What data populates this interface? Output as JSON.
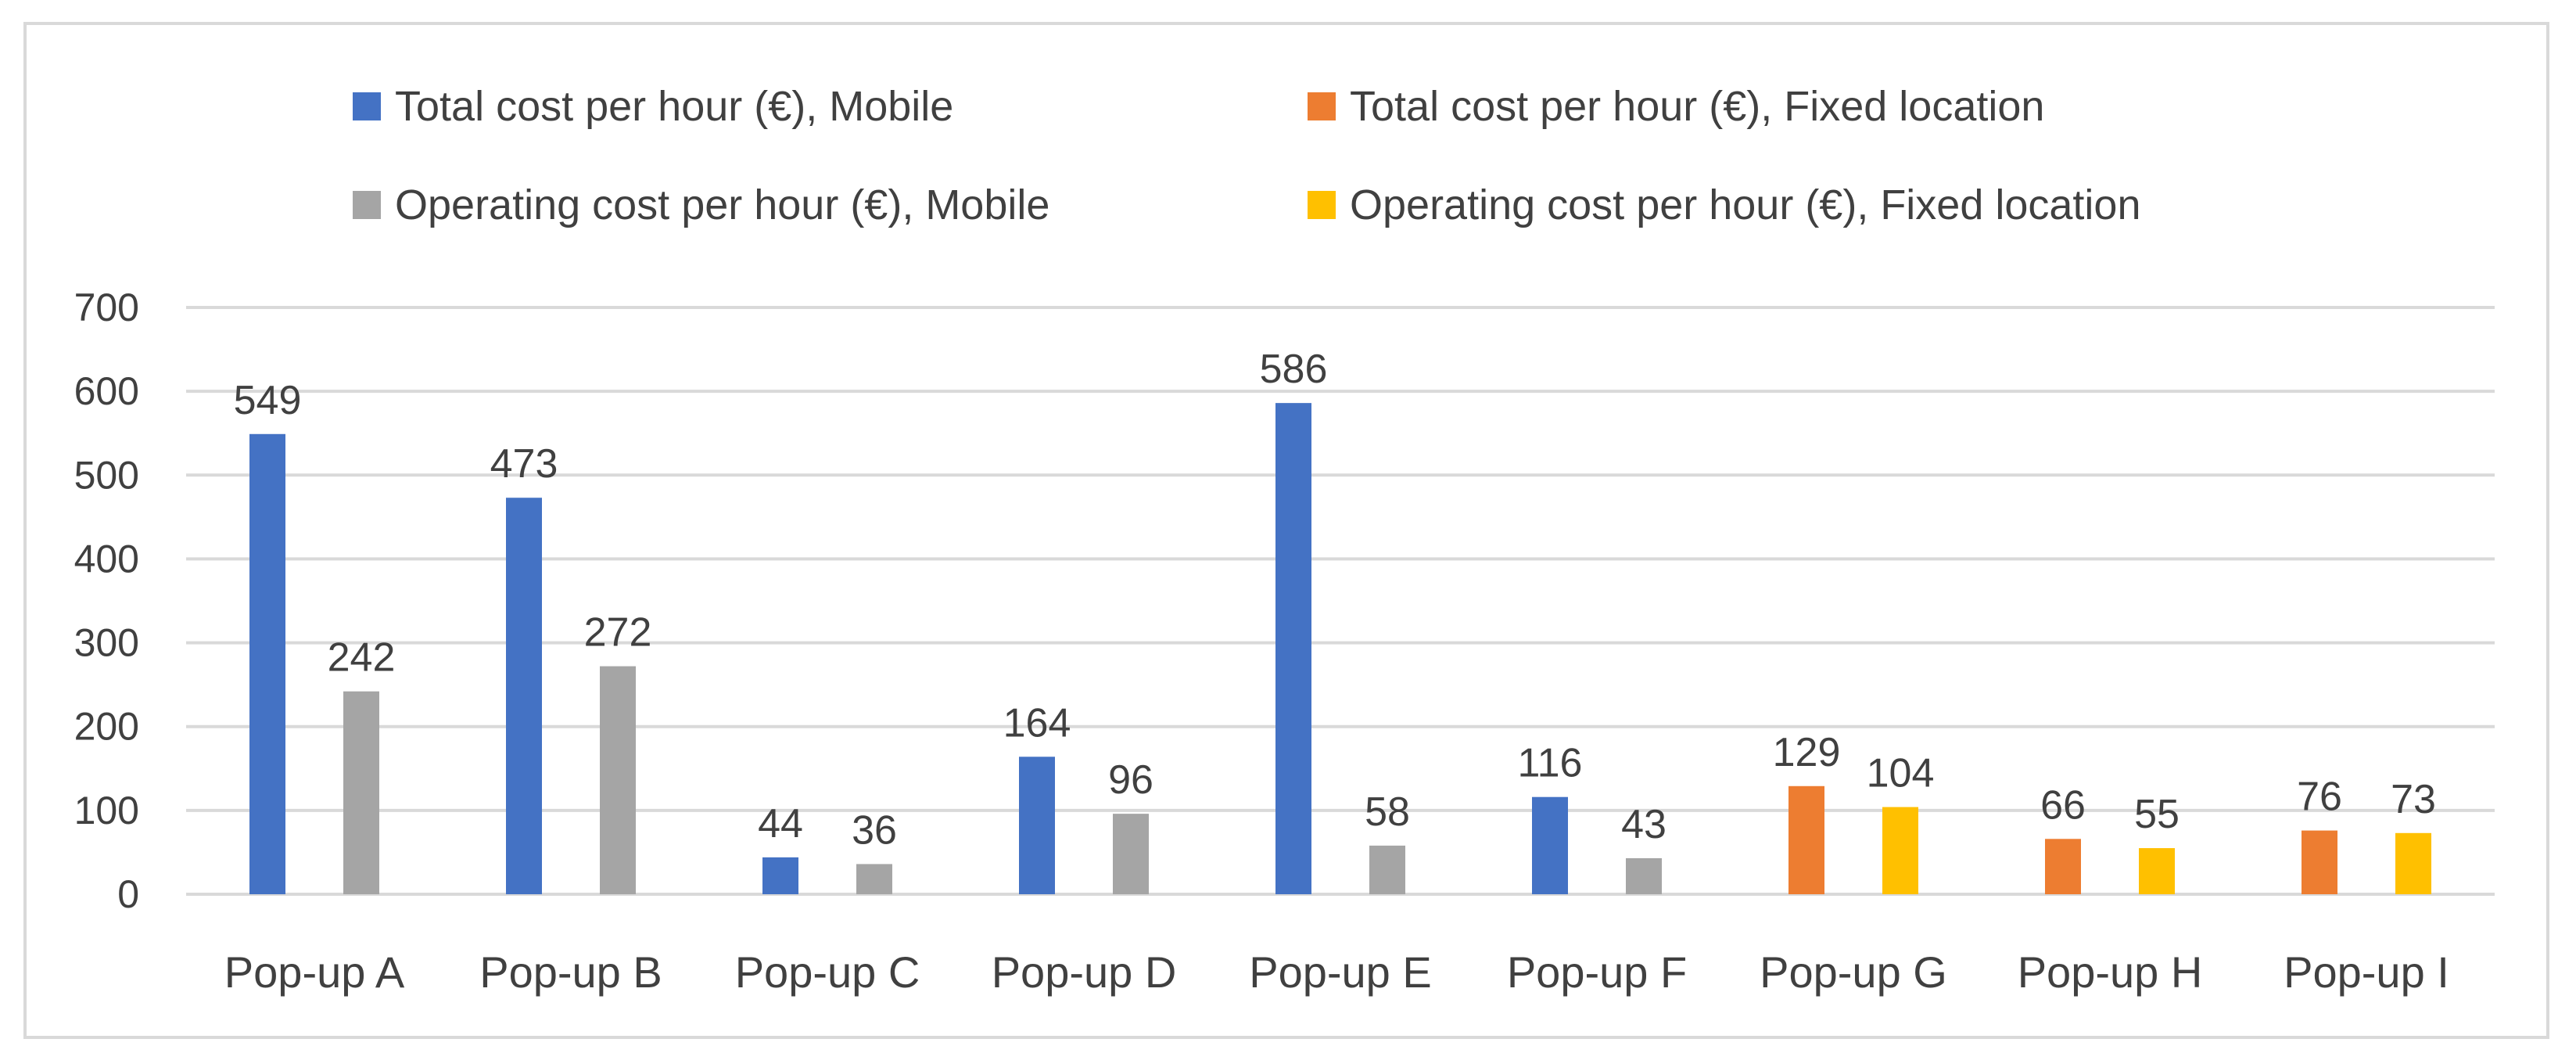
{
  "chart_data": {
    "type": "bar",
    "title": "",
    "xlabel": "",
    "ylabel": "",
    "ylim": [
      0,
      700
    ],
    "yticks": [
      0,
      100,
      200,
      300,
      400,
      500,
      600,
      700
    ],
    "grid": true,
    "legend_position": "top",
    "categories": [
      "Pop-up A",
      "Pop-up B",
      "Pop-up C",
      "Pop-up D",
      "Pop-up E",
      "Pop-up F",
      "Pop-up G",
      "Pop-up H",
      "Pop-up I"
    ],
    "series": [
      {
        "name": "Total cost per hour (€), Mobile",
        "color": "#4472C4",
        "values": [
          549,
          473,
          44,
          164,
          586,
          116,
          null,
          null,
          null
        ]
      },
      {
        "name": "Operating cost per hour (€), Mobile",
        "color": "#A5A5A5",
        "values": [
          242,
          272,
          36,
          96,
          58,
          43,
          null,
          null,
          null
        ]
      },
      {
        "name": "Total cost per hour (€), Fixed location",
        "color": "#ED7D31",
        "values": [
          null,
          null,
          null,
          null,
          null,
          null,
          129,
          66,
          76
        ]
      },
      {
        "name": "Operating cost per hour (€), Fixed location",
        "color": "#FFC000",
        "values": [
          null,
          null,
          null,
          null,
          null,
          null,
          104,
          55,
          73
        ]
      }
    ],
    "legend_order": [
      0,
      2,
      1,
      3
    ]
  }
}
